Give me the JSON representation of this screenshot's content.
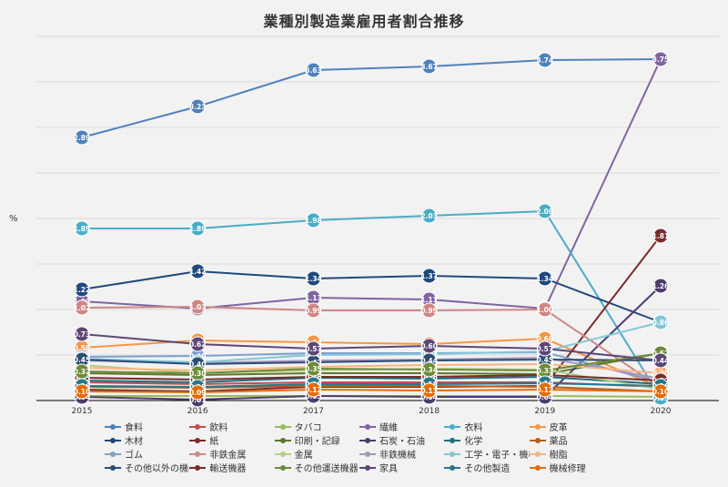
{
  "chart_data": {
    "type": "line",
    "title": "業種別製造業雇用者割合推移",
    "ylabel": "%",
    "xlabel": "",
    "categories": [
      "2015",
      "2016",
      "2017",
      "2018",
      "2019",
      "2020"
    ],
    "ylim": [
      0,
      4
    ],
    "grid": true,
    "legend_position": "bottom",
    "series": [
      {
        "name": "食料",
        "color": "#4f81bd",
        "values": [
          2.89,
          3.23,
          3.63,
          3.67,
          3.74,
          3.75
        ]
      },
      {
        "name": "飲料",
        "color": "#c0504d",
        "values": [
          0.2,
          0.18,
          0.2,
          0.2,
          0.2,
          0.15
        ]
      },
      {
        "name": "タバコ",
        "color": "#9bbb59",
        "values": [
          0.05,
          0.05,
          0.05,
          0.05,
          0.05,
          0.04
        ]
      },
      {
        "name": "繊維",
        "color": "#8064a2",
        "values": [
          1.09,
          1.01,
          1.13,
          1.11,
          1.01,
          3.75
        ]
      },
      {
        "name": "衣料",
        "color": "#4bacc6",
        "values": [
          1.89,
          1.89,
          1.98,
          2.03,
          2.08,
          0.03
        ]
      },
      {
        "name": "皮革",
        "color": "#f79646",
        "values": [
          0.58,
          0.66,
          0.64,
          0.62,
          0.68,
          0.14
        ]
      },
      {
        "name": "木材",
        "color": "#1f497d",
        "values": [
          1.22,
          1.42,
          1.34,
          1.37,
          1.34,
          0.86
        ]
      },
      {
        "name": "紙",
        "color": "#7b2b29",
        "values": [
          0.12,
          0.1,
          0.15,
          0.15,
          0.16,
          1.81
        ]
      },
      {
        "name": "印刷・記録",
        "color": "#5d7730",
        "values": [
          0.3,
          0.28,
          0.3,
          0.3,
          0.29,
          0.52
        ]
      },
      {
        "name": "石炭・石油",
        "color": "#4f3b6b",
        "values": [
          0.04,
          0.01,
          0.05,
          0.04,
          0.04,
          1.26
        ]
      },
      {
        "name": "化学",
        "color": "#1f6f82",
        "values": [
          0.22,
          0.2,
          0.25,
          0.24,
          0.26,
          0.18
        ]
      },
      {
        "name": "薬品",
        "color": "#b45f1e",
        "values": [
          0.15,
          0.14,
          0.16,
          0.16,
          0.15,
          0.1
        ]
      },
      {
        "name": "ゴム",
        "color": "#7f9fcf",
        "values": [
          0.48,
          0.49,
          0.52,
          0.52,
          0.53,
          0.2
        ]
      },
      {
        "name": "非鉄金属",
        "color": "#d08784",
        "values": [
          1.02,
          1.03,
          0.99,
          0.99,
          1.0,
          0.14
        ]
      },
      {
        "name": "金属",
        "color": "#b6cd86",
        "values": [
          0.39,
          0.3,
          0.33,
          0.35,
          0.34,
          0.12
        ]
      },
      {
        "name": "非鉄機械",
        "color": "#a796c0",
        "values": [
          0.44,
          0.41,
          0.44,
          0.45,
          0.47,
          0.24
        ]
      },
      {
        "name": "工学・電子・機械",
        "color": "#81c8da",
        "values": [
          0.46,
          0.42,
          0.5,
          0.51,
          0.54,
          0.86
        ]
      },
      {
        "name": "樹脂",
        "color": "#f9b47e",
        "values": [
          0.36,
          0.33,
          0.37,
          0.39,
          0.4,
          0.3
        ]
      },
      {
        "name": "その他以外の機械",
        "color": "#2c4d75",
        "values": [
          0.45,
          0.4,
          0.42,
          0.44,
          0.45,
          0.44
        ]
      },
      {
        "name": "輸送機器",
        "color": "#772c2a",
        "values": [
          0.25,
          0.23,
          0.26,
          0.26,
          0.28,
          0.22
        ]
      },
      {
        "name": "その他運送機器",
        "color": "#6d8b39",
        "values": [
          0.32,
          0.3,
          0.35,
          0.34,
          0.33,
          0.52
        ]
      },
      {
        "name": "家具",
        "color": "#5c4777",
        "values": [
          0.73,
          0.62,
          0.57,
          0.6,
          0.57,
          0.44
        ]
      },
      {
        "name": "その他製造",
        "color": "#27788c",
        "values": [
          0.16,
          0.15,
          0.18,
          0.18,
          0.19,
          0.16
        ]
      },
      {
        "name": "機械修理",
        "color": "#e46c0a",
        "values": [
          0.1,
          0.09,
          0.12,
          0.11,
          0.12,
          0.1
        ]
      }
    ]
  }
}
